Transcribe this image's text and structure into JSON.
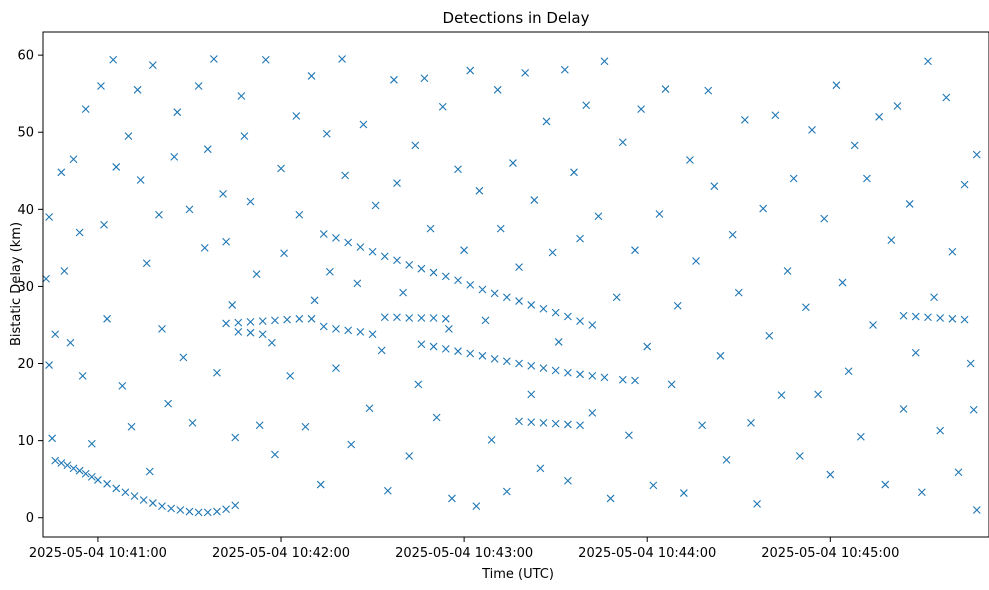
{
  "chart_data": {
    "type": "scatter",
    "title": "Detections in Delay",
    "xlabel": "Time (UTC)",
    "ylabel": "Bistatic Delay (km)",
    "x_axis_type": "time",
    "x_range": [
      "2025-05-04 10:40:42",
      "2025-05-04 10:45:52"
    ],
    "y_range": [
      -2.5,
      63
    ],
    "x_ticks": [
      "2025-05-04 10:41:00",
      "2025-05-04 10:42:00",
      "2025-05-04 10:43:00",
      "2025-05-04 10:44:00",
      "2025-05-04 10:45:00"
    ],
    "y_ticks": [
      0,
      10,
      20,
      30,
      40,
      50,
      60
    ],
    "marker": "x",
    "color": "#1f77b4",
    "grid": false,
    "legend": "none",
    "series": [
      {
        "points": [
          [
            "10:40:46",
            7.4
          ],
          [
            "10:40:48",
            7.1
          ],
          [
            "10:40:50",
            6.8
          ],
          [
            "10:40:52",
            6.4
          ],
          [
            "10:40:54",
            6.1
          ],
          [
            "10:40:56",
            5.7
          ],
          [
            "10:40:58",
            5.3
          ],
          [
            "10:41:00",
            4.9
          ],
          [
            "10:41:03",
            4.4
          ],
          [
            "10:41:06",
            3.8
          ],
          [
            "10:41:09",
            3.3
          ],
          [
            "10:41:12",
            2.8
          ],
          [
            "10:41:15",
            2.3
          ],
          [
            "10:41:18",
            1.9
          ],
          [
            "10:41:21",
            1.5
          ],
          [
            "10:41:24",
            1.2
          ],
          [
            "10:41:27",
            1.0
          ],
          [
            "10:41:30",
            0.8
          ],
          [
            "10:41:33",
            0.7
          ],
          [
            "10:41:36",
            0.7
          ],
          [
            "10:41:39",
            0.8
          ],
          [
            "10:41:42",
            1.1
          ],
          [
            "10:41:45",
            1.6
          ],
          [
            "10:41:42",
            25.2
          ],
          [
            "10:41:46",
            25.3
          ],
          [
            "10:41:50",
            25.4
          ],
          [
            "10:41:54",
            25.5
          ],
          [
            "10:41:58",
            25.6
          ],
          [
            "10:42:02",
            25.7
          ],
          [
            "10:42:06",
            25.8
          ],
          [
            "10:42:10",
            25.8
          ],
          [
            "10:41:46",
            24.1
          ],
          [
            "10:41:50",
            24.0
          ],
          [
            "10:41:54",
            23.8
          ],
          [
            "10:42:14",
            36.8
          ],
          [
            "10:42:18",
            36.3
          ],
          [
            "10:42:22",
            35.7
          ],
          [
            "10:42:26",
            35.1
          ],
          [
            "10:42:30",
            34.5
          ],
          [
            "10:42:34",
            33.9
          ],
          [
            "10:42:38",
            33.4
          ],
          [
            "10:42:42",
            32.8
          ],
          [
            "10:42:46",
            32.3
          ],
          [
            "10:42:50",
            31.8
          ],
          [
            "10:42:54",
            31.3
          ],
          [
            "10:42:58",
            30.8
          ],
          [
            "10:43:02",
            30.2
          ],
          [
            "10:43:06",
            29.6
          ],
          [
            "10:43:10",
            29.1
          ],
          [
            "10:43:14",
            28.6
          ],
          [
            "10:43:18",
            28.1
          ],
          [
            "10:43:22",
            27.6
          ],
          [
            "10:43:26",
            27.1
          ],
          [
            "10:43:30",
            26.6
          ],
          [
            "10:43:34",
            26.1
          ],
          [
            "10:43:38",
            25.5
          ],
          [
            "10:43:42",
            25.0
          ],
          [
            "10:42:14",
            24.8
          ],
          [
            "10:42:18",
            24.5
          ],
          [
            "10:42:22",
            24.3
          ],
          [
            "10:42:26",
            24.1
          ],
          [
            "10:42:30",
            23.8
          ],
          [
            "10:42:34",
            26.0
          ],
          [
            "10:42:38",
            26.0
          ],
          [
            "10:42:42",
            25.9
          ],
          [
            "10:42:46",
            25.9
          ],
          [
            "10:42:50",
            25.9
          ],
          [
            "10:42:54",
            25.8
          ],
          [
            "10:42:46",
            22.5
          ],
          [
            "10:42:50",
            22.2
          ],
          [
            "10:42:54",
            21.9
          ],
          [
            "10:42:58",
            21.6
          ],
          [
            "10:43:02",
            21.3
          ],
          [
            "10:43:06",
            21.0
          ],
          [
            "10:43:10",
            20.6
          ],
          [
            "10:43:14",
            20.3
          ],
          [
            "10:43:18",
            20.0
          ],
          [
            "10:43:22",
            19.7
          ],
          [
            "10:43:26",
            19.4
          ],
          [
            "10:43:30",
            19.1
          ],
          [
            "10:43:34",
            18.8
          ],
          [
            "10:43:38",
            18.6
          ],
          [
            "10:43:42",
            18.4
          ],
          [
            "10:43:46",
            18.2
          ],
          [
            "10:43:52",
            17.9
          ],
          [
            "10:43:56",
            17.8
          ],
          [
            "10:43:18",
            12.5
          ],
          [
            "10:43:22",
            12.4
          ],
          [
            "10:43:26",
            12.3
          ],
          [
            "10:43:30",
            12.2
          ],
          [
            "10:43:34",
            12.1
          ],
          [
            "10:43:38",
            12.0
          ],
          [
            "10:45:24",
            26.2
          ],
          [
            "10:45:28",
            26.1
          ],
          [
            "10:45:32",
            26.0
          ],
          [
            "10:45:36",
            25.9
          ],
          [
            "10:45:40",
            25.8
          ],
          [
            "10:45:44",
            25.7
          ],
          [
            "10:40:43",
            31.0
          ],
          [
            "10:40:44",
            39.0
          ],
          [
            "10:40:44",
            19.8
          ],
          [
            "10:40:45",
            10.3
          ],
          [
            "10:40:46",
            23.8
          ],
          [
            "10:40:48",
            44.8
          ],
          [
            "10:40:49",
            32.0
          ],
          [
            "10:40:51",
            22.7
          ],
          [
            "10:40:52",
            46.5
          ],
          [
            "10:40:54",
            37.0
          ],
          [
            "10:40:55",
            18.4
          ],
          [
            "10:40:56",
            53.0
          ],
          [
            "10:40:58",
            9.6
          ],
          [
            "10:41:01",
            56.0
          ],
          [
            "10:41:02",
            38.0
          ],
          [
            "10:41:03",
            25.8
          ],
          [
            "10:41:05",
            59.4
          ],
          [
            "10:41:06",
            45.5
          ],
          [
            "10:41:08",
            17.1
          ],
          [
            "10:41:10",
            49.5
          ],
          [
            "10:41:11",
            11.8
          ],
          [
            "10:41:13",
            55.5
          ],
          [
            "10:41:14",
            43.8
          ],
          [
            "10:41:16",
            33.0
          ],
          [
            "10:41:17",
            6.0
          ],
          [
            "10:41:18",
            58.7
          ],
          [
            "10:41:20",
            39.3
          ],
          [
            "10:41:21",
            24.5
          ],
          [
            "10:41:23",
            14.8
          ],
          [
            "10:41:25",
            46.8
          ],
          [
            "10:41:26",
            52.6
          ],
          [
            "10:41:28",
            20.8
          ],
          [
            "10:41:30",
            40.0
          ],
          [
            "10:41:31",
            12.3
          ],
          [
            "10:41:33",
            56.0
          ],
          [
            "10:41:35",
            35.0
          ],
          [
            "10:41:36",
            47.8
          ],
          [
            "10:41:38",
            59.5
          ],
          [
            "10:41:39",
            18.8
          ],
          [
            "10:41:41",
            42.0
          ],
          [
            "10:41:42",
            35.8
          ],
          [
            "10:41:44",
            27.6
          ],
          [
            "10:41:45",
            10.4
          ],
          [
            "10:41:47",
            54.7
          ],
          [
            "10:41:48",
            49.5
          ],
          [
            "10:41:50",
            41.0
          ],
          [
            "10:41:52",
            31.6
          ],
          [
            "10:41:53",
            12.0
          ],
          [
            "10:41:55",
            59.4
          ],
          [
            "10:41:57",
            22.7
          ],
          [
            "10:41:58",
            8.2
          ],
          [
            "10:42:00",
            45.3
          ],
          [
            "10:42:01",
            34.3
          ],
          [
            "10:42:03",
            18.4
          ],
          [
            "10:42:05",
            52.1
          ],
          [
            "10:42:06",
            39.3
          ],
          [
            "10:42:08",
            11.8
          ],
          [
            "10:42:10",
            57.3
          ],
          [
            "10:42:11",
            28.2
          ],
          [
            "10:42:13",
            4.3
          ],
          [
            "10:42:15",
            49.8
          ],
          [
            "10:42:16",
            31.9
          ],
          [
            "10:42:18",
            19.4
          ],
          [
            "10:42:20",
            59.5
          ],
          [
            "10:42:21",
            44.4
          ],
          [
            "10:42:23",
            9.5
          ],
          [
            "10:42:25",
            30.4
          ],
          [
            "10:42:27",
            51.0
          ],
          [
            "10:42:29",
            14.2
          ],
          [
            "10:42:31",
            40.5
          ],
          [
            "10:42:33",
            21.7
          ],
          [
            "10:42:35",
            3.5
          ],
          [
            "10:42:37",
            56.8
          ],
          [
            "10:42:38",
            43.4
          ],
          [
            "10:42:40",
            29.2
          ],
          [
            "10:42:42",
            8.0
          ],
          [
            "10:42:44",
            48.3
          ],
          [
            "10:42:45",
            17.3
          ],
          [
            "10:42:47",
            57.0
          ],
          [
            "10:42:49",
            37.5
          ],
          [
            "10:42:51",
            13.0
          ],
          [
            "10:42:53",
            53.3
          ],
          [
            "10:42:55",
            24.5
          ],
          [
            "10:42:56",
            2.5
          ],
          [
            "10:42:58",
            45.2
          ],
          [
            "10:43:00",
            34.7
          ],
          [
            "10:43:02",
            58.0
          ],
          [
            "10:43:04",
            1.5
          ],
          [
            "10:43:05",
            42.4
          ],
          [
            "10:43:07",
            25.6
          ],
          [
            "10:43:09",
            10.1
          ],
          [
            "10:43:11",
            55.5
          ],
          [
            "10:43:12",
            37.5
          ],
          [
            "10:43:14",
            3.4
          ],
          [
            "10:43:16",
            46.0
          ],
          [
            "10:43:18",
            32.5
          ],
          [
            "10:43:20",
            57.7
          ],
          [
            "10:43:22",
            16.0
          ],
          [
            "10:43:23",
            41.2
          ],
          [
            "10:43:25",
            6.4
          ],
          [
            "10:43:27",
            51.4
          ],
          [
            "10:43:29",
            34.4
          ],
          [
            "10:43:31",
            22.8
          ],
          [
            "10:43:33",
            58.1
          ],
          [
            "10:43:34",
            4.8
          ],
          [
            "10:43:36",
            44.8
          ],
          [
            "10:43:38",
            36.2
          ],
          [
            "10:43:40",
            53.5
          ],
          [
            "10:43:42",
            13.6
          ],
          [
            "10:43:44",
            39.1
          ],
          [
            "10:43:46",
            59.2
          ],
          [
            "10:43:48",
            2.5
          ],
          [
            "10:43:50",
            28.6
          ],
          [
            "10:43:52",
            48.7
          ],
          [
            "10:43:54",
            10.7
          ],
          [
            "10:43:56",
            34.7
          ],
          [
            "10:43:58",
            53.0
          ],
          [
            "10:44:00",
            22.2
          ],
          [
            "10:44:02",
            4.2
          ],
          [
            "10:44:04",
            39.4
          ],
          [
            "10:44:06",
            55.6
          ],
          [
            "10:44:08",
            17.3
          ],
          [
            "10:44:10",
            27.5
          ],
          [
            "10:44:12",
            3.2
          ],
          [
            "10:44:14",
            46.4
          ],
          [
            "10:44:16",
            33.3
          ],
          [
            "10:44:18",
            12.0
          ],
          [
            "10:44:20",
            55.4
          ],
          [
            "10:44:22",
            43.0
          ],
          [
            "10:44:24",
            21.0
          ],
          [
            "10:44:26",
            7.5
          ],
          [
            "10:44:28",
            36.7
          ],
          [
            "10:44:30",
            29.2
          ],
          [
            "10:44:32",
            51.6
          ],
          [
            "10:44:34",
            12.3
          ],
          [
            "10:44:36",
            1.8
          ],
          [
            "10:44:38",
            40.1
          ],
          [
            "10:44:40",
            23.6
          ],
          [
            "10:44:42",
            52.2
          ],
          [
            "10:44:44",
            15.9
          ],
          [
            "10:44:46",
            32.0
          ],
          [
            "10:44:48",
            44.0
          ],
          [
            "10:44:50",
            8.0
          ],
          [
            "10:44:52",
            27.3
          ],
          [
            "10:44:54",
            50.3
          ],
          [
            "10:44:56",
            16.0
          ],
          [
            "10:44:58",
            38.8
          ],
          [
            "10:45:00",
            5.6
          ],
          [
            "10:45:02",
            56.1
          ],
          [
            "10:45:04",
            30.5
          ],
          [
            "10:45:06",
            19.0
          ],
          [
            "10:45:08",
            48.3
          ],
          [
            "10:45:10",
            10.5
          ],
          [
            "10:45:12",
            44.0
          ],
          [
            "10:45:14",
            25.0
          ],
          [
            "10:45:16",
            52.0
          ],
          [
            "10:45:18",
            4.3
          ],
          [
            "10:45:20",
            36.0
          ],
          [
            "10:45:22",
            53.4
          ],
          [
            "10:45:24",
            14.1
          ],
          [
            "10:45:26",
            40.7
          ],
          [
            "10:45:28",
            21.4
          ],
          [
            "10:45:30",
            3.3
          ],
          [
            "10:45:32",
            59.2
          ],
          [
            "10:45:34",
            28.6
          ],
          [
            "10:45:36",
            11.3
          ],
          [
            "10:45:38",
            54.5
          ],
          [
            "10:45:40",
            34.5
          ],
          [
            "10:45:42",
            5.9
          ],
          [
            "10:45:44",
            43.2
          ],
          [
            "10:45:46",
            20.0
          ],
          [
            "10:45:48",
            47.1
          ],
          [
            "10:45:48",
            1.0
          ],
          [
            "10:45:47",
            14.0
          ]
        ]
      }
    ]
  }
}
